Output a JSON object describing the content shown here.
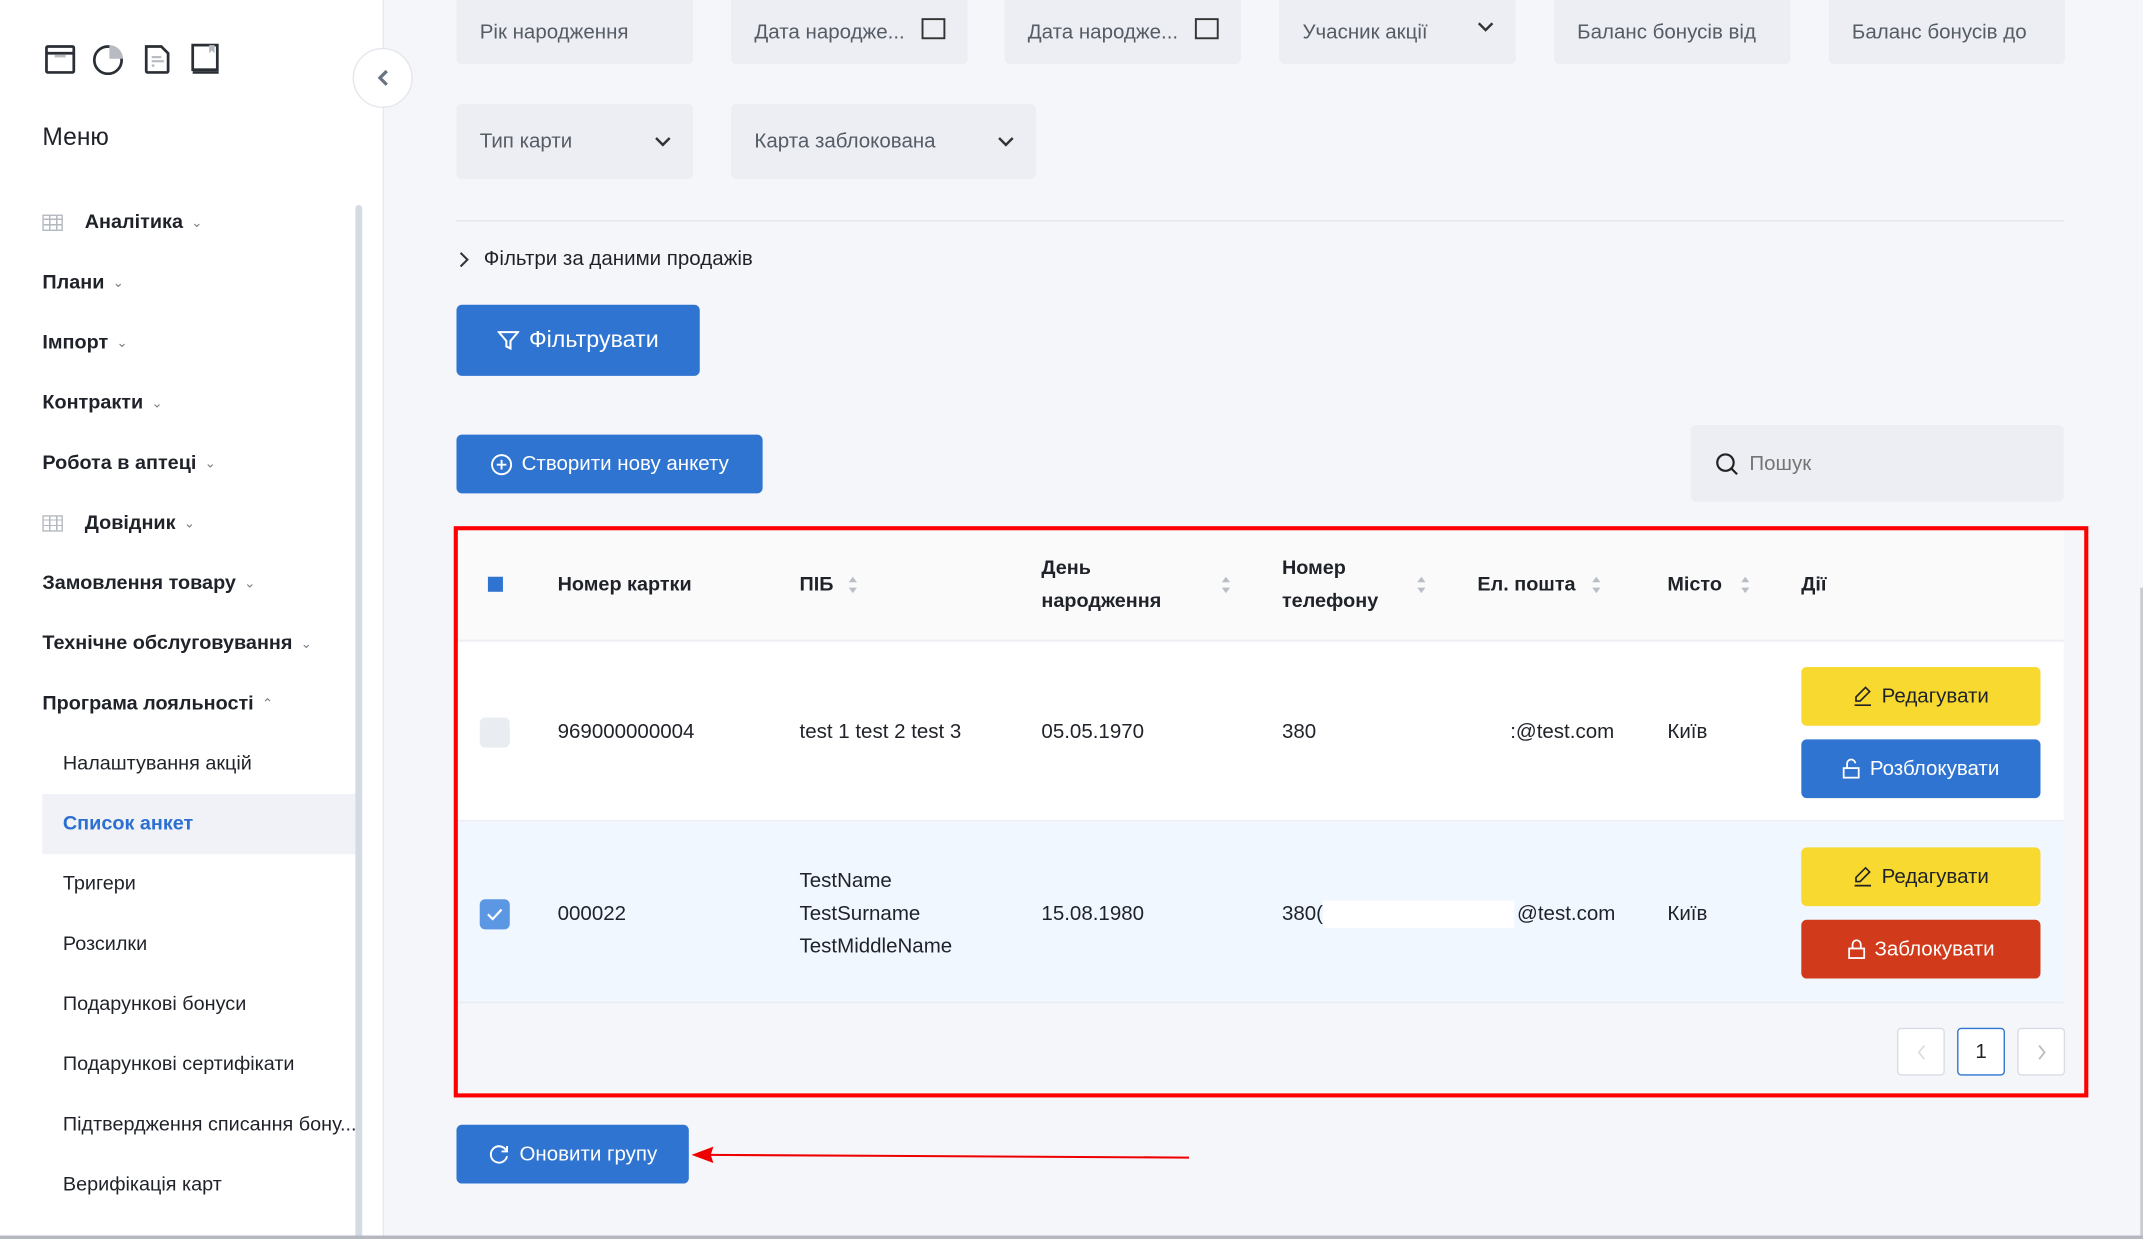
{
  "sidebar": {
    "top_icons": [
      "archive-box-icon",
      "pie-chart-icon",
      "document-icon",
      "bookmark-book-icon"
    ],
    "menu_title": "Меню",
    "items": [
      {
        "label": "Аналітика",
        "icon": "table-grid-icon",
        "expanded": false
      },
      {
        "label": "Плани",
        "expanded": false
      },
      {
        "label": "Імпорт",
        "expanded": false
      },
      {
        "label": "Контракти",
        "expanded": false
      },
      {
        "label": "Робота в аптеці",
        "expanded": false
      },
      {
        "label": "Довідник",
        "icon": "list-icon",
        "expanded": false
      },
      {
        "label": "Замовлення товару",
        "expanded": false
      },
      {
        "label": "Технічне обслуговування",
        "expanded": false
      },
      {
        "label": "Програма лояльності",
        "expanded": true
      }
    ],
    "subitems": [
      {
        "label": "Налаштування акцій"
      },
      {
        "label": "Список анкет",
        "active": true
      },
      {
        "label": "Тригери"
      },
      {
        "label": "Розсилки"
      },
      {
        "label": "Подарункові бонуси"
      },
      {
        "label": "Подарункові сертифікати"
      },
      {
        "label": "Підтвердження списання бону..."
      },
      {
        "label": "Верифікація карт"
      }
    ]
  },
  "filters": {
    "row1": [
      "Рік народження",
      "Дата народже...",
      "Дата народже...",
      "Учасник акції",
      "Баланс бонусів від",
      "Баланс бонусів до"
    ],
    "row2": [
      "Тип карти",
      "Карта заблокована"
    ],
    "sales_filters_label": "Фільтри за даними продажів",
    "filter_button": "Фільтрувати"
  },
  "create_button": "Створити нову анкету",
  "search": {
    "placeholder": "Пошук",
    "value": ""
  },
  "table": {
    "headers": {
      "card": "Номер картки",
      "name": "ПІБ",
      "birth1": "День",
      "birth2": "народження",
      "phone1": "Номер",
      "phone2": "телефону",
      "email": "Ел. пошта",
      "city": "Місто",
      "actions": "Дії"
    },
    "rows": [
      {
        "checked": false,
        "card": "969000000004",
        "name": [
          "test 1 test 2 test 3"
        ],
        "birth": "05.05.1970",
        "phone": "380",
        "email": ":@test.com",
        "city": "Київ",
        "edit": "Редагувати",
        "toggle": "Розблокувати",
        "toggle_color": "#2f74d0"
      },
      {
        "checked": true,
        "card": "000022",
        "name": [
          "TestName",
          "TestSurname",
          "TestMiddleName"
        ],
        "birth": "15.08.1980",
        "phone": "380(",
        "email": "@test.com",
        "city": "Київ",
        "edit": "Редагувати",
        "toggle": "Заблокувати",
        "toggle_color": "#d13a1a"
      }
    ],
    "pagination": {
      "current": "1"
    }
  },
  "update_group_button": "Оновити групу",
  "colors": {
    "primary": "#2f74d0",
    "warning": "#f7d92f",
    "danger": "#d13a1a",
    "annotation": "#ff0000"
  }
}
